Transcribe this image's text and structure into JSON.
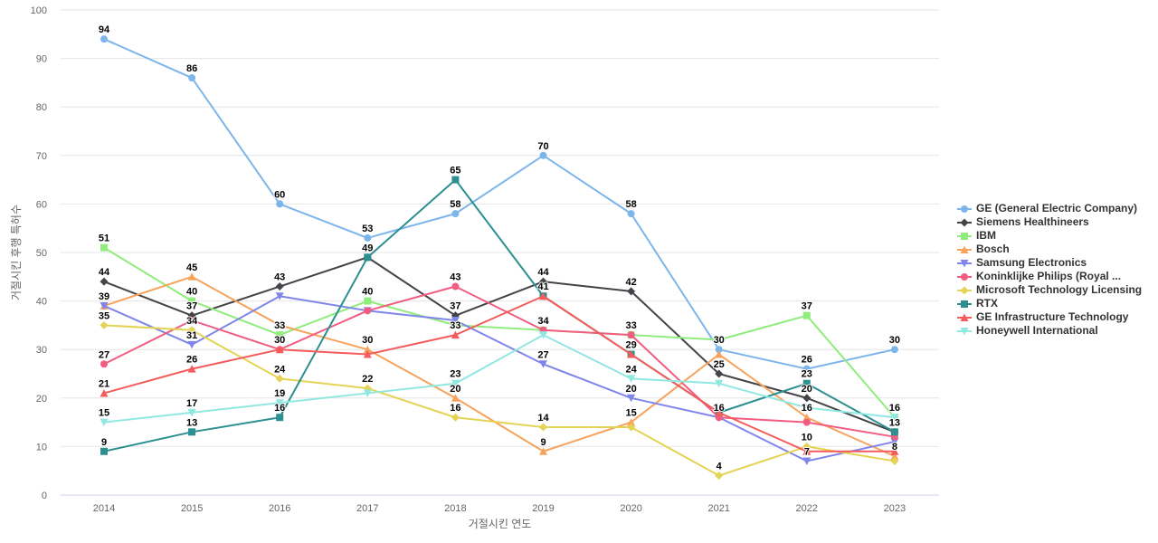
{
  "chart_data": {
    "type": "line",
    "title": "",
    "xlabel": "거절시킨 연도",
    "ylabel": "거절시킨 후행 특허수",
    "x": [
      "2014",
      "2015",
      "2016",
      "2017",
      "2018",
      "2019",
      "2020",
      "2021",
      "2022",
      "2023"
    ],
    "ylim": [
      0,
      100
    ],
    "yticks": [
      "0",
      "10",
      "20",
      "30",
      "40",
      "50",
      "60",
      "70",
      "80",
      "90",
      "100"
    ],
    "grid": true,
    "legend_position": "right",
    "series": [
      {
        "name": "GE (General Electric Company)",
        "color": "#7cb5ec",
        "marker": "circle",
        "values": [
          94,
          86,
          60,
          53,
          58,
          70,
          58,
          30,
          26,
          30
        ]
      },
      {
        "name": "Siemens Healthineers",
        "color": "#434348",
        "marker": "diamond",
        "values": [
          44,
          37,
          43,
          49,
          37,
          44,
          42,
          25,
          20,
          13
        ]
      },
      {
        "name": "IBM",
        "color": "#90ed7d",
        "marker": "square",
        "values": [
          51,
          40,
          33,
          40,
          35,
          34,
          33,
          32,
          37,
          16
        ]
      },
      {
        "name": "Bosch",
        "color": "#f7a35c",
        "marker": "triangle",
        "values": [
          39,
          45,
          35,
          30,
          20,
          9,
          15,
          29,
          16,
          8
        ]
      },
      {
        "name": "Samsung Electronics",
        "color": "#8085e9",
        "marker": "triangle-down",
        "values": [
          39,
          31,
          41,
          38,
          36,
          27,
          20,
          16,
          7,
          11
        ]
      },
      {
        "name": "Koninklijke Philips (Royal ...",
        "color": "#f15c80",
        "marker": "circle",
        "values": [
          27,
          36,
          30,
          38,
          43,
          34,
          33,
          16,
          15,
          12
        ]
      },
      {
        "name": "Microsoft Technology Licensing",
        "color": "#e4d354",
        "marker": "diamond",
        "values": [
          35,
          34,
          24,
          22,
          16,
          14,
          14,
          4,
          10,
          7
        ]
      },
      {
        "name": "RTX",
        "color": "#2b908f",
        "marker": "square",
        "values": [
          9,
          13,
          16,
          49,
          65,
          41,
          29,
          17,
          23,
          13
        ]
      },
      {
        "name": "GE Infrastructure Technology",
        "color": "#f45b5b",
        "marker": "triangle",
        "values": [
          21,
          26,
          30,
          29,
          33,
          41,
          29,
          17,
          9,
          9
        ]
      },
      {
        "name": "Honeywell International",
        "color": "#91e8e1",
        "marker": "triangle-down",
        "values": [
          15,
          17,
          19,
          21,
          23,
          33,
          24,
          23,
          18,
          16
        ]
      }
    ],
    "data_labels": [
      {
        "x": "2014",
        "text": "94",
        "y": 94
      },
      {
        "x": "2014",
        "text": "51",
        "y": 51
      },
      {
        "x": "2014",
        "text": "44",
        "y": 44
      },
      {
        "x": "2014",
        "text": "39",
        "y": 39
      },
      {
        "x": "2014",
        "text": "35",
        "y": 35
      },
      {
        "x": "2014",
        "text": "27",
        "y": 27
      },
      {
        "x": "2014",
        "text": "21",
        "y": 21
      },
      {
        "x": "2014",
        "text": "15",
        "y": 15
      },
      {
        "x": "2014",
        "text": "9",
        "y": 9
      },
      {
        "x": "2015",
        "text": "86",
        "y": 86
      },
      {
        "x": "2015",
        "text": "45",
        "y": 45
      },
      {
        "x": "2015",
        "text": "40",
        "y": 40
      },
      {
        "x": "2015",
        "text": "37",
        "y": 37
      },
      {
        "x": "2015",
        "text": "34",
        "y": 34
      },
      {
        "x": "2015",
        "text": "31",
        "y": 31
      },
      {
        "x": "2015",
        "text": "26",
        "y": 26
      },
      {
        "x": "2015",
        "text": "17",
        "y": 17
      },
      {
        "x": "2015",
        "text": "13",
        "y": 13
      },
      {
        "x": "2016",
        "text": "60",
        "y": 60
      },
      {
        "x": "2016",
        "text": "43",
        "y": 43
      },
      {
        "x": "2016",
        "text": "33",
        "y": 33
      },
      {
        "x": "2016",
        "text": "30",
        "y": 30
      },
      {
        "x": "2016",
        "text": "24",
        "y": 24
      },
      {
        "x": "2016",
        "text": "19",
        "y": 19
      },
      {
        "x": "2016",
        "text": "16",
        "y": 16
      },
      {
        "x": "2017",
        "text": "53",
        "y": 53
      },
      {
        "x": "2017",
        "text": "49",
        "y": 49
      },
      {
        "x": "2017",
        "text": "40",
        "y": 40
      },
      {
        "x": "2017",
        "text": "30",
        "y": 30
      },
      {
        "x": "2017",
        "text": "22",
        "y": 22
      },
      {
        "x": "2018",
        "text": "65",
        "y": 65
      },
      {
        "x": "2018",
        "text": "58",
        "y": 58
      },
      {
        "x": "2018",
        "text": "43",
        "y": 43
      },
      {
        "x": "2018",
        "text": "37",
        "y": 37
      },
      {
        "x": "2018",
        "text": "33",
        "y": 33
      },
      {
        "x": "2018",
        "text": "23",
        "y": 23
      },
      {
        "x": "2018",
        "text": "20",
        "y": 20
      },
      {
        "x": "2018",
        "text": "16",
        "y": 16
      },
      {
        "x": "2019",
        "text": "70",
        "y": 70
      },
      {
        "x": "2019",
        "text": "44",
        "y": 44
      },
      {
        "x": "2019",
        "text": "41",
        "y": 41
      },
      {
        "x": "2019",
        "text": "34",
        "y": 34
      },
      {
        "x": "2019",
        "text": "27",
        "y": 27
      },
      {
        "x": "2019",
        "text": "14",
        "y": 14
      },
      {
        "x": "2019",
        "text": "9",
        "y": 9
      },
      {
        "x": "2020",
        "text": "58",
        "y": 58
      },
      {
        "x": "2020",
        "text": "42",
        "y": 42
      },
      {
        "x": "2020",
        "text": "33",
        "y": 33
      },
      {
        "x": "2020",
        "text": "29",
        "y": 29
      },
      {
        "x": "2020",
        "text": "24",
        "y": 24
      },
      {
        "x": "2020",
        "text": "20",
        "y": 20
      },
      {
        "x": "2020",
        "text": "15",
        "y": 15
      },
      {
        "x": "2021",
        "text": "30",
        "y": 30
      },
      {
        "x": "2021",
        "text": "25",
        "y": 25
      },
      {
        "x": "2021",
        "text": "16",
        "y": 16
      },
      {
        "x": "2021",
        "text": "4",
        "y": 4
      },
      {
        "x": "2022",
        "text": "37",
        "y": 37
      },
      {
        "x": "2022",
        "text": "26",
        "y": 26
      },
      {
        "x": "2022",
        "text": "23",
        "y": 23
      },
      {
        "x": "2022",
        "text": "20",
        "y": 20
      },
      {
        "x": "2022",
        "text": "16",
        "y": 16
      },
      {
        "x": "2022",
        "text": "10",
        "y": 10
      },
      {
        "x": "2022",
        "text": "7",
        "y": 7
      },
      {
        "x": "2023",
        "text": "30",
        "y": 30
      },
      {
        "x": "2023",
        "text": "16",
        "y": 16
      },
      {
        "x": "2023",
        "text": "13",
        "y": 13
      },
      {
        "x": "2023",
        "text": "8",
        "y": 8
      }
    ]
  }
}
